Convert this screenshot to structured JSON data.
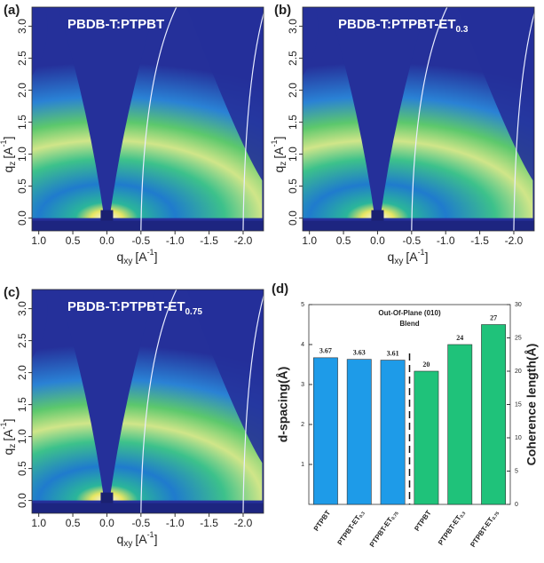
{
  "chart_data": [
    {
      "type": "heatmap",
      "panel_label": "(a)",
      "title": "PBDB-T:PTPBT",
      "title_sub": null,
      "xlabel": "q",
      "xlabel_sub": "xy",
      "xlabel_unit": "[A",
      "xlabel_sup": "-1",
      "xlabel_close": "]",
      "ylabel": "q",
      "ylabel_sub": "z",
      "ylabel_unit": "[A",
      "ylabel_sup": "-1",
      "ylabel_close": "]",
      "xlim": [
        1.1,
        -2.3
      ],
      "xticks": [
        {
          "value": 1,
          "label": "1.0"
        },
        0.5,
        {
          "value": 0,
          "label": "0.0"
        },
        -0.5,
        {
          "value": -1,
          "label": "-1.0"
        },
        -1.5,
        {
          "value": -2,
          "label": "-2.0"
        }
      ],
      "ylim": [
        -0.2,
        3.3
      ],
      "yticks": [
        {
          "value": 0,
          "label": "0.0"
        },
        0.5,
        {
          "value": 1,
          "label": "1.0"
        },
        1.5,
        {
          "value": 2,
          "label": "2.0"
        },
        2.5,
        {
          "value": 3,
          "label": "3.0"
        }
      ]
    },
    {
      "type": "heatmap",
      "panel_label": "(b)",
      "title": "PBDB-T:PTPBT-ET",
      "title_sub": "0.3",
      "xlabel": "q",
      "xlabel_sub": "xy",
      "xlabel_unit": "[A",
      "xlabel_sup": "-1",
      "xlabel_close": "]",
      "ylabel": "q",
      "ylabel_sub": "z",
      "ylabel_unit": "[A",
      "ylabel_sup": "-1",
      "ylabel_close": "]",
      "xlim": [
        1.1,
        -2.3
      ],
      "xticks": [
        {
          "value": 1,
          "label": "1.0"
        },
        0.5,
        {
          "value": 0,
          "label": "0.0"
        },
        -0.5,
        {
          "value": -1,
          "label": "-1.0"
        },
        -1.5,
        {
          "value": -2,
          "label": "-2.0"
        }
      ],
      "ylim": [
        -0.2,
        3.3
      ],
      "yticks": [
        {
          "value": 0,
          "label": "0.0"
        },
        0.5,
        {
          "value": 1,
          "label": "1.0"
        },
        1.5,
        {
          "value": 2,
          "label": "2.0"
        },
        2.5,
        {
          "value": 3,
          "label": "3.0"
        }
      ]
    },
    {
      "type": "heatmap",
      "panel_label": "(c)",
      "title": "PBDB-T:PTPBT-ET",
      "title_sub": "0.75",
      "xlabel": "q",
      "xlabel_sub": "xy",
      "xlabel_unit": "[A",
      "xlabel_sup": "-1",
      "xlabel_close": "]",
      "ylabel": "q",
      "ylabel_sub": "z",
      "ylabel_unit": "[A",
      "ylabel_sup": "-1",
      "ylabel_close": "]",
      "xlim": [
        1.1,
        -2.3
      ],
      "xticks": [
        {
          "value": 1,
          "label": "1.0"
        },
        0.5,
        {
          "value": 0,
          "label": "0.0"
        },
        -0.5,
        {
          "value": -1,
          "label": "-1.0"
        },
        -1.5,
        {
          "value": -2,
          "label": "-2.0"
        }
      ],
      "ylim": [
        -0.2,
        3.3
      ],
      "yticks": [
        {
          "value": 0,
          "label": "0.0"
        },
        0.5,
        {
          "value": 1,
          "label": "1.0"
        },
        1.5,
        {
          "value": 2,
          "label": "2.0"
        },
        2.5,
        {
          "value": 3,
          "label": "3.0"
        }
      ]
    },
    {
      "type": "bar",
      "panel_label": "(d)",
      "annotations": [
        "Out-Of-Plane (010)",
        "Blend"
      ],
      "categories": [
        "PTPBT",
        "PTPBT-ET",
        "PTPBT-ET",
        "PTPBT",
        "PTPBT-ET",
        "PTPBT-ET"
      ],
      "category_subs": [
        null,
        "0.3",
        "0.75",
        null,
        "0.3",
        "0.75"
      ],
      "ylabel": "d-spacing(Å)",
      "y2label": "Coherence length(Å)",
      "ylim": [
        0,
        5
      ],
      "yticks": [
        1,
        2,
        3,
        4,
        5
      ],
      "y2lim": [
        0,
        30
      ],
      "y2ticks": [
        0,
        5,
        10,
        15,
        20,
        25,
        30
      ],
      "series": [
        {
          "color": "#1e9be8",
          "values": [
            3.67,
            3.63,
            3.61,
            null,
            null,
            null
          ]
        },
        {
          "color": "#1fc27a",
          "axis": "y2",
          "values": [
            null,
            null,
            null,
            20,
            24,
            27
          ]
        }
      ]
    }
  ]
}
